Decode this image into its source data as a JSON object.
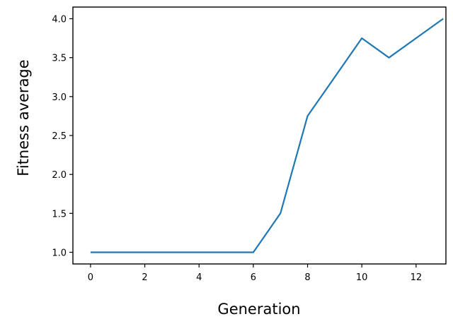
{
  "chart_data": {
    "type": "line",
    "title": "",
    "xlabel": "Generation",
    "ylabel": "Fitness average",
    "x": [
      0,
      1,
      2,
      3,
      4,
      5,
      6,
      7,
      8,
      9,
      10,
      11,
      12,
      13
    ],
    "series": [
      {
        "values": [
          1.0,
          1.0,
          1.0,
          1.0,
          1.0,
          1.0,
          1.0,
          1.5,
          2.75,
          3.25,
          3.75,
          3.5,
          3.75,
          4.0
        ],
        "color": "#1f77b4"
      }
    ],
    "xticks": [
      0,
      2,
      4,
      6,
      8,
      10,
      12
    ],
    "xtick_labels": [
      "0",
      "2",
      "4",
      "6",
      "8",
      "10",
      "12"
    ],
    "yticks": [
      1.0,
      1.5,
      2.0,
      2.5,
      3.0,
      3.5,
      4.0
    ],
    "ytick_labels": [
      "1.0",
      "1.5",
      "2.0",
      "2.5",
      "3.0",
      "3.5",
      "4.0"
    ],
    "xlim": [
      -0.65,
      13.1
    ],
    "ylim": [
      0.85,
      4.15
    ],
    "grid": false,
    "legend": "none"
  }
}
